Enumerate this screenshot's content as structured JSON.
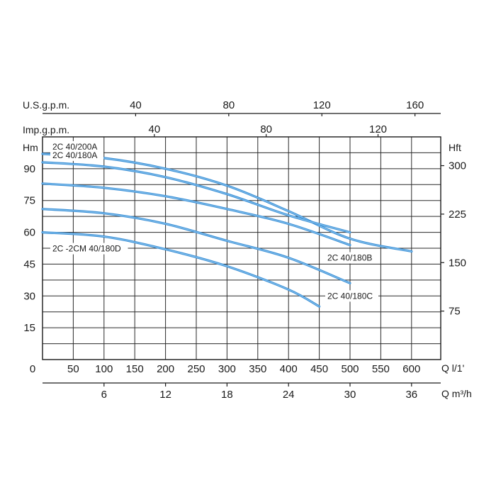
{
  "chart_data": {
    "type": "line",
    "title": "",
    "grid": true,
    "line_color": "#3a8fd6",
    "x_flow_lmin": {
      "label": "Q l/1'",
      "range": [
        0,
        650
      ],
      "ticks": [
        "0",
        "50",
        "100",
        "150",
        "200",
        "250",
        "300",
        "350",
        "400",
        "450",
        "500",
        "550",
        "600"
      ]
    },
    "x_flow_m3h": {
      "label": "Q m³/h",
      "ticks": [
        {
          "label": "6",
          "value": 6
        },
        {
          "label": "12",
          "value": 12
        },
        {
          "label": "18",
          "value": 18
        },
        {
          "label": "24",
          "value": 24
        },
        {
          "label": "30",
          "value": 30
        },
        {
          "label": "36",
          "value": 36
        }
      ]
    },
    "x_usgpm": {
      "label": "U.S.g.p.m.",
      "ticks": [
        {
          "label": "40",
          "value": 40
        },
        {
          "label": "80",
          "value": 80
        },
        {
          "label": "120",
          "value": 120
        },
        {
          "label": "160",
          "value": 160
        }
      ]
    },
    "x_impgpm": {
      "label": "Imp.g.p.m.",
      "ticks": [
        {
          "label": "40",
          "value": 40
        },
        {
          "label": "80",
          "value": 80
        },
        {
          "label": "120",
          "value": 120
        }
      ]
    },
    "y_left": {
      "label": "Hm",
      "range": [
        0,
        105
      ],
      "ticks": [
        {
          "label": "15",
          "value": 15
        },
        {
          "label": "30",
          "value": 30
        },
        {
          "label": "45",
          "value": 45
        },
        {
          "label": "60",
          "value": 60
        },
        {
          "label": "75",
          "value": 75
        },
        {
          "label": "90",
          "value": 90
        }
      ]
    },
    "y_right": {
      "label": "Hft",
      "ticks": [
        {
          "label": "75",
          "value": 75
        },
        {
          "label": "150",
          "value": 150
        },
        {
          "label": "225",
          "value": 225
        },
        {
          "label": "300",
          "value": 300
        }
      ]
    },
    "series": [
      {
        "name": "2C 40/200A",
        "x": [
          0,
          100,
          200,
          300,
          400,
          500,
          600
        ],
        "y": [
          97,
          95,
          90,
          82,
          70,
          57,
          51
        ],
        "label_anchor": "start"
      },
      {
        "name": "2C 40/180A",
        "x": [
          0,
          100,
          200,
          300,
          400,
          500
        ],
        "y": [
          93,
          91,
          86,
          78,
          68,
          60
        ],
        "label_anchor": "start"
      },
      {
        "name": "2C 40/180B",
        "x": [
          0,
          100,
          200,
          300,
          400,
          500
        ],
        "y": [
          83,
          81,
          77,
          71,
          64,
          54
        ],
        "label_anchor": "end"
      },
      {
        "name": "2C 40/180C",
        "x": [
          0,
          100,
          200,
          300,
          400,
          500
        ],
        "y": [
          71,
          69,
          64,
          56,
          48,
          36
        ],
        "label_anchor": "end"
      },
      {
        "name": "2C -2CM 40/180D",
        "x": [
          0,
          100,
          200,
          300,
          400,
          450
        ],
        "y": [
          60,
          58,
          52,
          44,
          33,
          25
        ],
        "label_anchor": "start"
      }
    ]
  }
}
